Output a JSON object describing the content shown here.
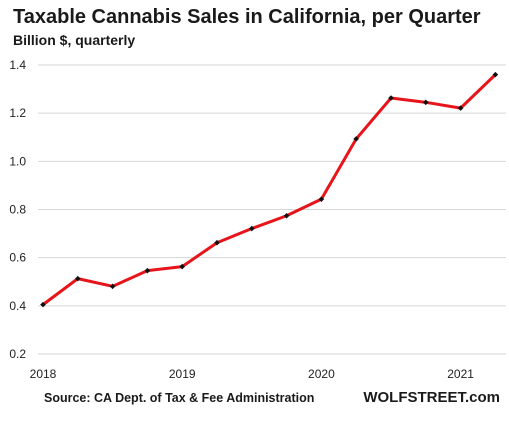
{
  "chart_data": {
    "type": "line",
    "title": "Taxable Cannabis Sales in California, per Quarter",
    "subtitle": "Billion $, quarterly",
    "source": "Source: CA Dept. of Tax & Fee Administration",
    "brand": "WOLFSTREET.com",
    "xlabel": "",
    "ylabel": "",
    "x_ticks": [
      "2018",
      "2019",
      "2020",
      "2021"
    ],
    "y_ticks": [
      "0.2",
      "0.4",
      "0.6",
      "0.8",
      "1.0",
      "1.2",
      "1.4"
    ],
    "ylim": [
      0.2,
      1.4
    ],
    "grid": "horizontal",
    "series": [
      {
        "color": "#e8141b",
        "marker_color": "#111111",
        "x": [
          "2018-Q1",
          "2018-Q2",
          "2018-Q3",
          "2018-Q4",
          "2019-Q1",
          "2019-Q2",
          "2019-Q3",
          "2019-Q4",
          "2020-Q1",
          "2020-Q2",
          "2020-Q3",
          "2020-Q4",
          "2021-Q1",
          "2021-Q2"
        ],
        "values": [
          0.405,
          0.513,
          0.481,
          0.546,
          0.563,
          0.662,
          0.721,
          0.774,
          0.843,
          1.093,
          1.263,
          1.245,
          1.221,
          1.36
        ]
      }
    ]
  }
}
